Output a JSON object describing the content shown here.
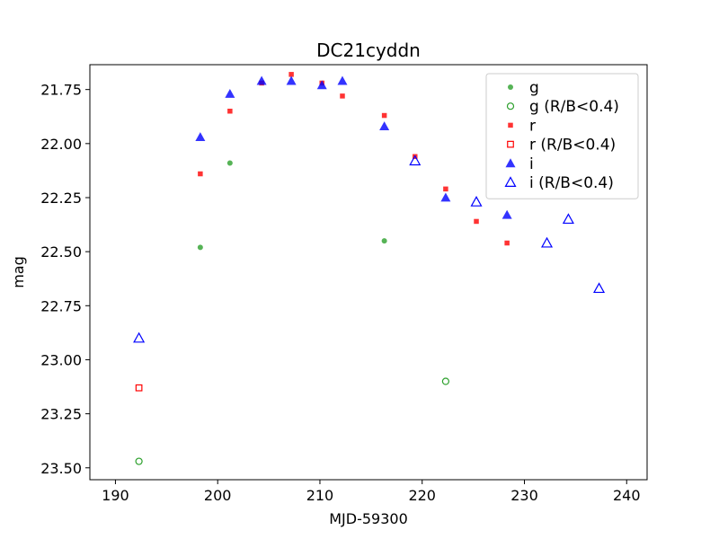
{
  "chart_data": {
    "type": "scatter",
    "title": "DC21cyddn",
    "xlabel": "MJD-59300",
    "ylabel": "mag",
    "xlim": [
      187.5,
      242
    ],
    "ylim": [
      23.555,
      21.635
    ],
    "y_inverted": true,
    "grid": false,
    "legend_position": "top-right",
    "xticks": [
      190,
      200,
      210,
      220,
      230,
      240
    ],
    "yticks": [
      21.75,
      22.0,
      22.25,
      22.5,
      22.75,
      23.0,
      23.25,
      23.5
    ],
    "xtick_labels": [
      "190",
      "200",
      "210",
      "220",
      "230",
      "240"
    ],
    "ytick_labels": [
      "21.75",
      "22.00",
      "22.25",
      "22.50",
      "22.75",
      "23.00",
      "23.25",
      "23.50"
    ],
    "colors": {
      "g": "#2ca02c",
      "r": "#ff0000",
      "i": "#0000ff"
    },
    "series": [
      {
        "name": "g",
        "marker": "circle",
        "filled": true,
        "color": "#2ca02c",
        "points": [
          [
            198.3,
            22.48
          ],
          [
            201.2,
            22.09
          ],
          [
            216.3,
            22.45
          ]
        ]
      },
      {
        "name": "g (R/B<0.4)",
        "marker": "circle",
        "filled": false,
        "color": "#2ca02c",
        "points": [
          [
            192.3,
            23.47
          ],
          [
            222.3,
            23.1
          ]
        ]
      },
      {
        "name": "r",
        "marker": "square",
        "filled": true,
        "color": "#ff0000",
        "points": [
          [
            198.3,
            22.14
          ],
          [
            201.2,
            21.85
          ],
          [
            204.3,
            21.72
          ],
          [
            207.2,
            21.68
          ],
          [
            210.2,
            21.72
          ],
          [
            212.2,
            21.78
          ],
          [
            216.3,
            21.87
          ],
          [
            219.3,
            22.06
          ],
          [
            222.3,
            22.21
          ],
          [
            225.3,
            22.36
          ],
          [
            228.3,
            22.46
          ]
        ]
      },
      {
        "name": "r (R/B<0.4)",
        "marker": "square",
        "filled": false,
        "color": "#ff0000",
        "points": [
          [
            192.3,
            23.13
          ]
        ]
      },
      {
        "name": "i",
        "marker": "triangle",
        "filled": true,
        "color": "#0000ff",
        "points": [
          [
            198.3,
            21.97
          ],
          [
            201.2,
            21.77
          ],
          [
            204.3,
            21.71
          ],
          [
            207.2,
            21.71
          ],
          [
            210.2,
            21.73
          ],
          [
            212.2,
            21.71
          ],
          [
            216.3,
            21.92
          ],
          [
            222.3,
            22.25
          ],
          [
            228.3,
            22.33
          ]
        ]
      },
      {
        "name": "i (R/B<0.4)",
        "marker": "triangle",
        "filled": false,
        "color": "#0000ff",
        "points": [
          [
            192.3,
            22.9
          ],
          [
            219.3,
            22.08
          ],
          [
            225.3,
            22.27
          ],
          [
            232.2,
            22.46
          ],
          [
            234.3,
            22.35
          ],
          [
            237.3,
            22.67
          ]
        ]
      }
    ]
  }
}
